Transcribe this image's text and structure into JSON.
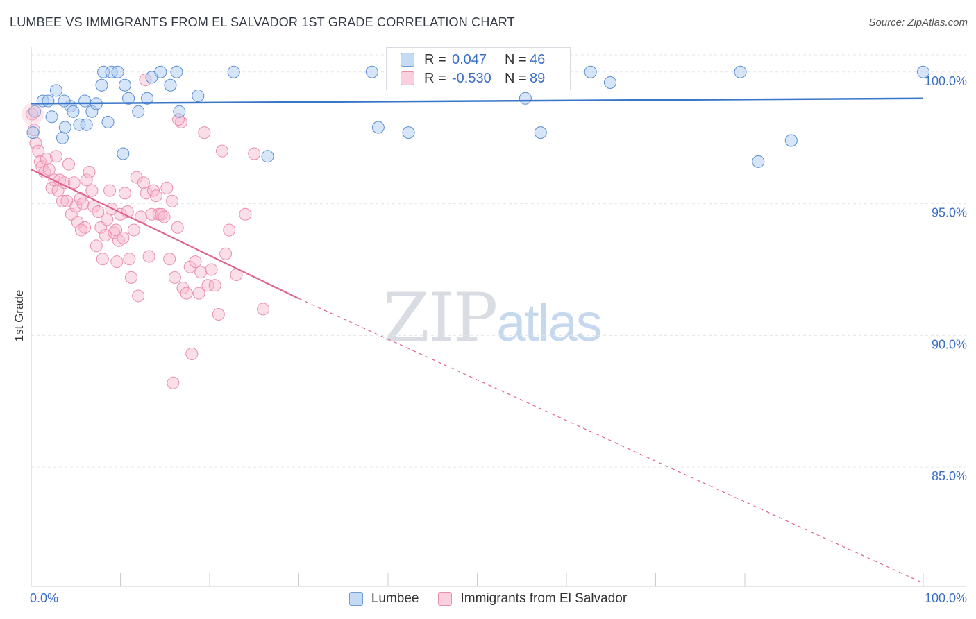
{
  "title": "LUMBEE VS IMMIGRANTS FROM EL SALVADOR 1ST GRADE CORRELATION CHART",
  "source": "Source: ZipAtlas.com",
  "watermark": {
    "zip": "ZIP",
    "atlas": "atlas"
  },
  "legend_top": {
    "r_label": "R =",
    "n_label": "N =",
    "rows": [
      {
        "r": "0.047",
        "n": "46"
      },
      {
        "r": "-0.530",
        "n": "89"
      }
    ]
  },
  "legend_bottom": [
    "Lumbee",
    "Immigrants from El Salvador"
  ],
  "colors": {
    "blue": "#3a76c8",
    "blue_fill": "#aecbef",
    "pink": "#e0628f",
    "pink_fill": "#f6b9cc",
    "axis_label": "#3a6fc4"
  },
  "chart_data": {
    "type": "scatter",
    "title": "LUMBEE VS IMMIGRANTS FROM EL SALVADOR 1ST GRADE CORRELATION CHART",
    "xlabel": "",
    "ylabel": "1st Grade",
    "xlim": [
      0,
      100
    ],
    "ylim": [
      80.5,
      100.6
    ],
    "x_tick_labels": [
      "0.0%",
      "100.0%"
    ],
    "y_ticks": [
      85,
      90,
      95,
      100
    ],
    "y_tick_labels": [
      "85.0%",
      "90.0%",
      "95.0%",
      "100.0%"
    ],
    "grid": true,
    "legend": "bottom-center",
    "series": [
      {
        "name": "Lumbee",
        "r": 0.047,
        "n": 46,
        "trend": {
          "x0": 0,
          "y0": 98.8,
          "x1": 100,
          "y1": 99.0
        },
        "points": [
          [
            0.4,
            98.5
          ],
          [
            1.3,
            98.9
          ],
          [
            1.9,
            98.9
          ],
          [
            2.3,
            98.3
          ],
          [
            2.8,
            99.3
          ],
          [
            3.5,
            97.5
          ],
          [
            3.8,
            97.9
          ],
          [
            4.4,
            98.7
          ],
          [
            4.7,
            98.5
          ],
          [
            5.4,
            98.0
          ],
          [
            6.0,
            98.9
          ],
          [
            6.2,
            98.0
          ],
          [
            6.8,
            98.5
          ],
          [
            7.3,
            98.8
          ],
          [
            7.9,
            99.5
          ],
          [
            8.1,
            100.0
          ],
          [
            8.6,
            98.1
          ],
          [
            9.0,
            100.0
          ],
          [
            9.7,
            100.0
          ],
          [
            10.3,
            96.9
          ],
          [
            10.5,
            99.5
          ],
          [
            10.9,
            99.0
          ],
          [
            12.0,
            98.5
          ],
          [
            13.0,
            99.0
          ],
          [
            13.5,
            99.8
          ],
          [
            14.5,
            100.0
          ],
          [
            15.6,
            99.5
          ],
          [
            16.3,
            100.0
          ],
          [
            16.6,
            98.5
          ],
          [
            18.7,
            99.1
          ],
          [
            22.7,
            100.0
          ],
          [
            26.5,
            96.8
          ],
          [
            38.2,
            100.0
          ],
          [
            38.9,
            97.9
          ],
          [
            42.3,
            97.7
          ],
          [
            48.9,
            99.9
          ],
          [
            55.4,
            99.0
          ],
          [
            57.1,
            97.7
          ],
          [
            62.7,
            100.0
          ],
          [
            64.9,
            99.6
          ],
          [
            79.5,
            100.0
          ],
          [
            81.5,
            96.6
          ],
          [
            85.2,
            97.4
          ],
          [
            100.0,
            100.0
          ],
          [
            0.2,
            97.7
          ],
          [
            3.7,
            98.9
          ]
        ]
      },
      {
        "name": "Immigrants from El Salvador",
        "r": -0.53,
        "n": 89,
        "trend": {
          "x0": 0,
          "y0": 96.3,
          "x1": 30,
          "y1": 91.4,
          "dash_to_x": 100,
          "dash_to_y": 80.6
        },
        "points": [
          [
            0.1,
            98.4
          ],
          [
            0.3,
            97.8
          ],
          [
            0.5,
            97.3
          ],
          [
            0.8,
            97.0
          ],
          [
            1.0,
            96.6
          ],
          [
            1.2,
            96.4
          ],
          [
            1.5,
            96.2
          ],
          [
            1.7,
            96.7
          ],
          [
            2.0,
            96.3
          ],
          [
            2.3,
            95.6
          ],
          [
            2.6,
            95.9
          ],
          [
            2.8,
            96.8
          ],
          [
            3.2,
            95.9
          ],
          [
            3.5,
            95.1
          ],
          [
            3.7,
            95.8
          ],
          [
            4.0,
            95.1
          ],
          [
            4.2,
            96.5
          ],
          [
            4.5,
            94.6
          ],
          [
            4.8,
            95.8
          ],
          [
            5.0,
            94.9
          ],
          [
            5.2,
            94.3
          ],
          [
            5.5,
            95.2
          ],
          [
            5.8,
            95.0
          ],
          [
            6.0,
            94.1
          ],
          [
            6.2,
            95.9
          ],
          [
            6.5,
            96.2
          ],
          [
            6.8,
            95.5
          ],
          [
            7.0,
            94.9
          ],
          [
            7.3,
            93.4
          ],
          [
            7.5,
            94.7
          ],
          [
            7.8,
            94.1
          ],
          [
            8.0,
            92.9
          ],
          [
            8.3,
            93.8
          ],
          [
            8.5,
            94.4
          ],
          [
            8.8,
            95.5
          ],
          [
            9.0,
            94.8
          ],
          [
            9.3,
            93.9
          ],
          [
            9.5,
            94.0
          ],
          [
            9.8,
            93.6
          ],
          [
            10.0,
            94.6
          ],
          [
            10.3,
            93.7
          ],
          [
            10.5,
            95.4
          ],
          [
            10.8,
            94.7
          ],
          [
            11.0,
            92.9
          ],
          [
            11.2,
            92.2
          ],
          [
            11.5,
            94.0
          ],
          [
            11.8,
            96.0
          ],
          [
            12.0,
            91.5
          ],
          [
            12.3,
            94.5
          ],
          [
            12.6,
            95.8
          ],
          [
            12.9,
            95.4
          ],
          [
            13.2,
            93.0
          ],
          [
            13.5,
            94.6
          ],
          [
            13.7,
            95.5
          ],
          [
            14.0,
            95.3
          ],
          [
            14.3,
            94.6
          ],
          [
            14.6,
            94.6
          ],
          [
            14.9,
            94.5
          ],
          [
            15.2,
            95.6
          ],
          [
            15.5,
            92.9
          ],
          [
            15.8,
            95.1
          ],
          [
            16.1,
            92.2
          ],
          [
            16.4,
            94.1
          ],
          [
            16.8,
            98.1
          ],
          [
            17.0,
            91.8
          ],
          [
            17.4,
            91.6
          ],
          [
            17.8,
            92.6
          ],
          [
            18.0,
            89.3
          ],
          [
            18.4,
            92.8
          ],
          [
            18.8,
            91.6
          ],
          [
            19.0,
            92.4
          ],
          [
            19.4,
            97.7
          ],
          [
            19.8,
            91.9
          ],
          [
            20.2,
            92.5
          ],
          [
            20.6,
            91.9
          ],
          [
            21.0,
            90.8
          ],
          [
            21.4,
            97.0
          ],
          [
            21.8,
            93.1
          ],
          [
            22.2,
            94.0
          ],
          [
            23.0,
            92.3
          ],
          [
            24.0,
            94.6
          ],
          [
            25.0,
            96.9
          ],
          [
            26.0,
            91.0
          ],
          [
            12.8,
            99.7
          ],
          [
            16.5,
            98.2
          ],
          [
            15.9,
            88.2
          ],
          [
            3.0,
            95.5
          ],
          [
            5.6,
            94.0
          ],
          [
            9.6,
            92.8
          ]
        ]
      }
    ]
  }
}
